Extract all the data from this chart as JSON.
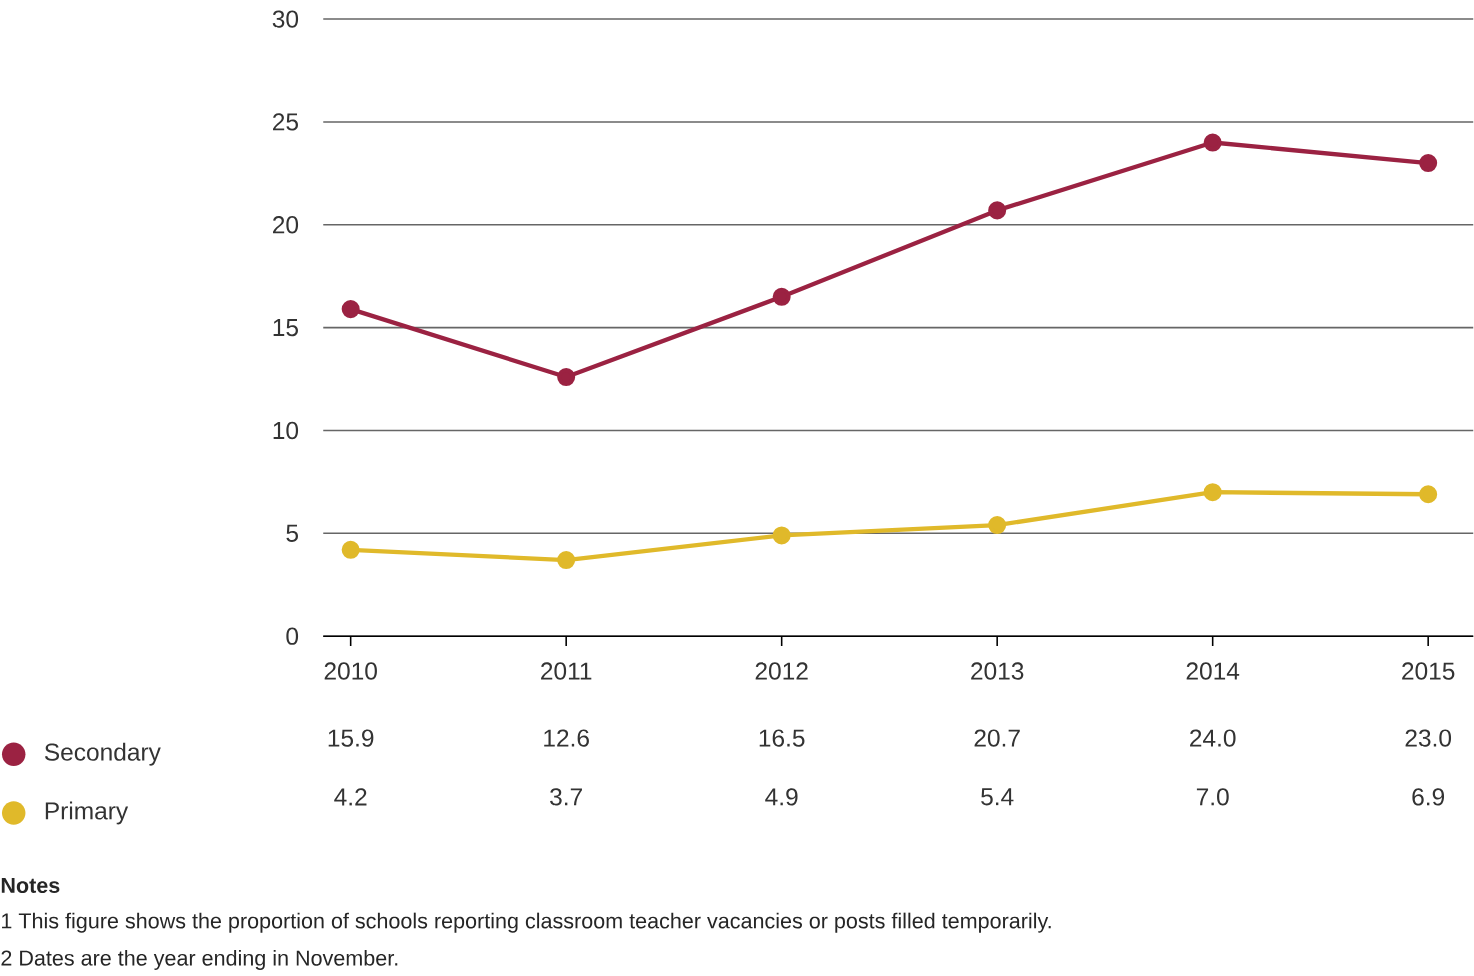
{
  "chart_data": {
    "type": "line",
    "categories": [
      "2010",
      "2011",
      "2012",
      "2013",
      "2014",
      "2015"
    ],
    "series": [
      {
        "name": "Secondary",
        "color": "#9b2242",
        "values": [
          15.9,
          12.6,
          16.5,
          20.7,
          24.0,
          23.0
        ],
        "value_labels": [
          "15.9",
          "12.6",
          "16.5",
          "20.7",
          "24.0",
          "23.0"
        ]
      },
      {
        "name": "Primary",
        "color": "#e0b92a",
        "values": [
          4.2,
          3.7,
          4.9,
          5.4,
          7.0,
          6.9
        ],
        "value_labels": [
          "4.2",
          "3.7",
          "4.9",
          "5.4",
          "7.0",
          "6.9"
        ]
      }
    ],
    "ylim": [
      0,
      30
    ],
    "yticks": [
      0,
      5,
      10,
      15,
      20,
      25,
      30
    ],
    "grid": "y",
    "marker": "circle",
    "line_style": "solid",
    "legend": "bottom left",
    "annotations": [
      "Notes",
      "1 This figure shows the proportion of schools reporting classroom teacher vacancies or posts filled temporarily.",
      "2 Dates are the year ending in November."
    ]
  }
}
